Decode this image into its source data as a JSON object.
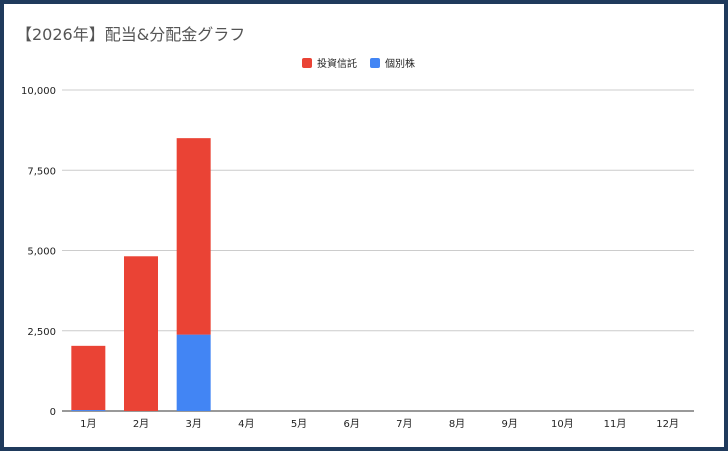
{
  "chart_data": {
    "type": "bar",
    "stacked": true,
    "title": "【2026年】配当&分配金グラフ",
    "categories": [
      "1月",
      "2月",
      "3月",
      "4月",
      "5月",
      "6月",
      "7月",
      "8月",
      "9月",
      "10月",
      "11月",
      "12月"
    ],
    "series": [
      {
        "name": "個別株",
        "color": "#4285f4",
        "values": [
          30,
          0,
          2380,
          0,
          0,
          0,
          0,
          0,
          0,
          0,
          0,
          0
        ]
      },
      {
        "name": "投資信託",
        "color": "#ea4335",
        "values": [
          2000,
          4820,
          6120,
          0,
          0,
          0,
          0,
          0,
          0,
          0,
          0,
          0
        ]
      }
    ],
    "legend_order": [
      "投資信託",
      "個別株"
    ],
    "ylim": [
      0,
      10000
    ],
    "yticks": [
      "0",
      "2,500",
      "5,000",
      "7,500",
      "10,000"
    ],
    "ytick_values": [
      0,
      2500,
      5000,
      7500,
      10000
    ],
    "grid": true,
    "legend_position": "top-center"
  }
}
